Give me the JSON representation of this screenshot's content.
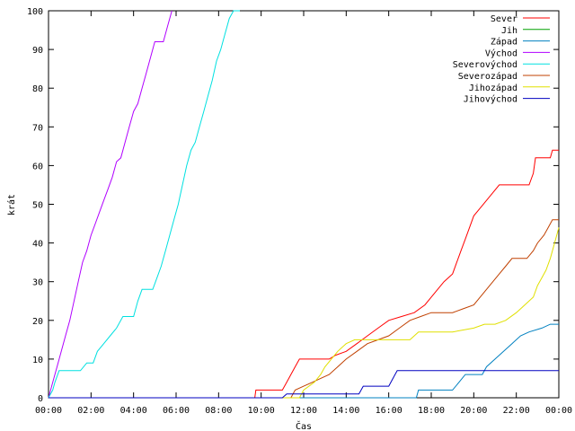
{
  "chart_data": {
    "type": "line",
    "title": "",
    "xlabel": "Čas",
    "ylabel": "krát",
    "xlim": [
      0,
      24
    ],
    "ylim": [
      0,
      100
    ],
    "x_ticks": [
      {
        "value": 0,
        "label": "00:00"
      },
      {
        "value": 2,
        "label": "02:00"
      },
      {
        "value": 4,
        "label": "04:00"
      },
      {
        "value": 6,
        "label": "06:00"
      },
      {
        "value": 8,
        "label": "08:00"
      },
      {
        "value": 10,
        "label": "10:00"
      },
      {
        "value": 12,
        "label": "12:00"
      },
      {
        "value": 14,
        "label": "14:00"
      },
      {
        "value": 16,
        "label": "16:00"
      },
      {
        "value": 18,
        "label": "18:00"
      },
      {
        "value": 20,
        "label": "20:00"
      },
      {
        "value": 22,
        "label": "22:00"
      },
      {
        "value": 24,
        "label": "00:00"
      }
    ],
    "y_ticks": [
      0,
      10,
      20,
      30,
      40,
      50,
      60,
      70,
      80,
      90,
      100
    ],
    "grid": false,
    "legend": "top-right",
    "series": [
      {
        "name": "Sever",
        "color": "#ff0000",
        "points": [
          [
            0,
            0
          ],
          [
            9.7,
            0
          ],
          [
            9.75,
            2
          ],
          [
            11,
            2
          ],
          [
            11.2,
            4
          ],
          [
            11.4,
            6
          ],
          [
            11.6,
            8
          ],
          [
            11.8,
            10
          ],
          [
            13.2,
            10
          ],
          [
            13.5,
            11
          ],
          [
            14.0,
            12
          ],
          [
            14.5,
            14
          ],
          [
            15.0,
            16
          ],
          [
            15.5,
            18
          ],
          [
            16.0,
            20
          ],
          [
            16.6,
            21
          ],
          [
            17.2,
            22
          ],
          [
            17.7,
            24
          ],
          [
            18.0,
            26
          ],
          [
            18.3,
            28
          ],
          [
            18.6,
            30
          ],
          [
            19.0,
            32
          ],
          [
            19.2,
            35
          ],
          [
            19.4,
            38
          ],
          [
            19.6,
            41
          ],
          [
            19.8,
            44
          ],
          [
            20.0,
            47
          ],
          [
            20.3,
            49
          ],
          [
            20.6,
            51
          ],
          [
            20.9,
            53
          ],
          [
            21.2,
            55
          ],
          [
            22.6,
            55
          ],
          [
            22.8,
            58
          ],
          [
            22.9,
            62
          ],
          [
            23.6,
            62
          ],
          [
            23.7,
            64
          ],
          [
            24,
            64
          ]
        ]
      },
      {
        "name": "Jih",
        "color": "#00a000",
        "points": []
      },
      {
        "name": "Západ",
        "color": "#0080c0",
        "points": [
          [
            0,
            0
          ],
          [
            17.3,
            0
          ],
          [
            17.4,
            2
          ],
          [
            19.0,
            2
          ],
          [
            19.3,
            4
          ],
          [
            19.6,
            6
          ],
          [
            20.4,
            6
          ],
          [
            20.6,
            8
          ],
          [
            21.0,
            10
          ],
          [
            21.4,
            12
          ],
          [
            21.8,
            14
          ],
          [
            22.2,
            16
          ],
          [
            22.6,
            17
          ],
          [
            23.2,
            18
          ],
          [
            23.6,
            19
          ],
          [
            24,
            19
          ]
        ]
      },
      {
        "name": "Východ",
        "color": "#b000ff",
        "points": [
          [
            0,
            0
          ],
          [
            0.2,
            4
          ],
          [
            0.4,
            8
          ],
          [
            0.6,
            12
          ],
          [
            0.8,
            16
          ],
          [
            1.0,
            20
          ],
          [
            1.2,
            25
          ],
          [
            1.4,
            30
          ],
          [
            1.6,
            35
          ],
          [
            1.8,
            38
          ],
          [
            2.0,
            42
          ],
          [
            2.2,
            45
          ],
          [
            2.4,
            48
          ],
          [
            2.6,
            51
          ],
          [
            2.8,
            54
          ],
          [
            3.0,
            57
          ],
          [
            3.2,
            61
          ],
          [
            3.4,
            62
          ],
          [
            3.6,
            66
          ],
          [
            3.8,
            70
          ],
          [
            4.0,
            74
          ],
          [
            4.2,
            76
          ],
          [
            4.4,
            80
          ],
          [
            4.6,
            84
          ],
          [
            4.8,
            88
          ],
          [
            5.0,
            92
          ],
          [
            5.4,
            92
          ],
          [
            5.6,
            96
          ],
          [
            5.8,
            100
          ]
        ]
      },
      {
        "name": "Severovýchod",
        "color": "#00e0e0",
        "points": [
          [
            0,
            0
          ],
          [
            0.2,
            2
          ],
          [
            0.3,
            4
          ],
          [
            0.5,
            7
          ],
          [
            1.5,
            7
          ],
          [
            1.8,
            9
          ],
          [
            2.1,
            9
          ],
          [
            2.3,
            12
          ],
          [
            2.6,
            14
          ],
          [
            2.9,
            16
          ],
          [
            3.2,
            18
          ],
          [
            3.5,
            21
          ],
          [
            4.0,
            21
          ],
          [
            4.2,
            25
          ],
          [
            4.4,
            28
          ],
          [
            4.9,
            28
          ],
          [
            5.1,
            31
          ],
          [
            5.3,
            34
          ],
          [
            5.5,
            38
          ],
          [
            5.7,
            42
          ],
          [
            5.9,
            46
          ],
          [
            6.1,
            50
          ],
          [
            6.3,
            55
          ],
          [
            6.5,
            60
          ],
          [
            6.7,
            64
          ],
          [
            6.9,
            66
          ],
          [
            7.1,
            70
          ],
          [
            7.3,
            74
          ],
          [
            7.5,
            78
          ],
          [
            7.7,
            82
          ],
          [
            7.9,
            87
          ],
          [
            8.1,
            90
          ],
          [
            8.3,
            94
          ],
          [
            8.5,
            98
          ],
          [
            8.7,
            100
          ],
          [
            9.0,
            100
          ]
        ]
      },
      {
        "name": "Severozápad",
        "color": "#c04000",
        "points": [
          [
            0,
            0
          ],
          [
            11.4,
            0
          ],
          [
            11.6,
            2
          ],
          [
            12.0,
            3
          ],
          [
            12.4,
            4
          ],
          [
            12.8,
            5
          ],
          [
            13.2,
            6
          ],
          [
            13.6,
            8
          ],
          [
            14.0,
            10
          ],
          [
            14.5,
            12
          ],
          [
            15.0,
            14
          ],
          [
            15.5,
            15
          ],
          [
            16.0,
            16
          ],
          [
            16.5,
            18
          ],
          [
            17.0,
            20
          ],
          [
            17.5,
            21
          ],
          [
            18.0,
            22
          ],
          [
            18.5,
            22
          ],
          [
            19.0,
            22
          ],
          [
            19.5,
            23
          ],
          [
            20.0,
            24
          ],
          [
            20.3,
            26
          ],
          [
            20.6,
            28
          ],
          [
            20.9,
            30
          ],
          [
            21.2,
            32
          ],
          [
            21.5,
            34
          ],
          [
            21.8,
            36
          ],
          [
            22.5,
            36
          ],
          [
            22.8,
            38
          ],
          [
            23.0,
            40
          ],
          [
            23.3,
            42
          ],
          [
            23.5,
            44
          ],
          [
            23.7,
            46
          ],
          [
            24,
            46
          ]
        ]
      },
      {
        "name": "Jihozápad",
        "color": "#e0e000",
        "points": [
          [
            0,
            0
          ],
          [
            11.8,
            0
          ],
          [
            12.0,
            2
          ],
          [
            12.5,
            4
          ],
          [
            12.8,
            6
          ],
          [
            13.0,
            8
          ],
          [
            13.3,
            10
          ],
          [
            13.6,
            12
          ],
          [
            14.0,
            14
          ],
          [
            14.4,
            15
          ],
          [
            15.0,
            15
          ],
          [
            16.0,
            15
          ],
          [
            17.0,
            15
          ],
          [
            17.4,
            17
          ],
          [
            18.0,
            17
          ],
          [
            19.0,
            17
          ],
          [
            20.0,
            18
          ],
          [
            20.5,
            19
          ],
          [
            21.0,
            19
          ],
          [
            21.5,
            20
          ],
          [
            22.0,
            22
          ],
          [
            22.4,
            24
          ],
          [
            22.8,
            26
          ],
          [
            23.0,
            29
          ],
          [
            23.2,
            31
          ],
          [
            23.4,
            33
          ],
          [
            23.6,
            36
          ],
          [
            23.8,
            40
          ],
          [
            24,
            44
          ]
        ]
      },
      {
        "name": "Jihovýchod",
        "color": "#0000c0",
        "points": [
          [
            0,
            0
          ],
          [
            11.0,
            0
          ],
          [
            11.2,
            1
          ],
          [
            14.6,
            1
          ],
          [
            14.8,
            3
          ],
          [
            16.0,
            3
          ],
          [
            16.2,
            5
          ],
          [
            16.4,
            7
          ],
          [
            24,
            7
          ]
        ]
      }
    ]
  }
}
